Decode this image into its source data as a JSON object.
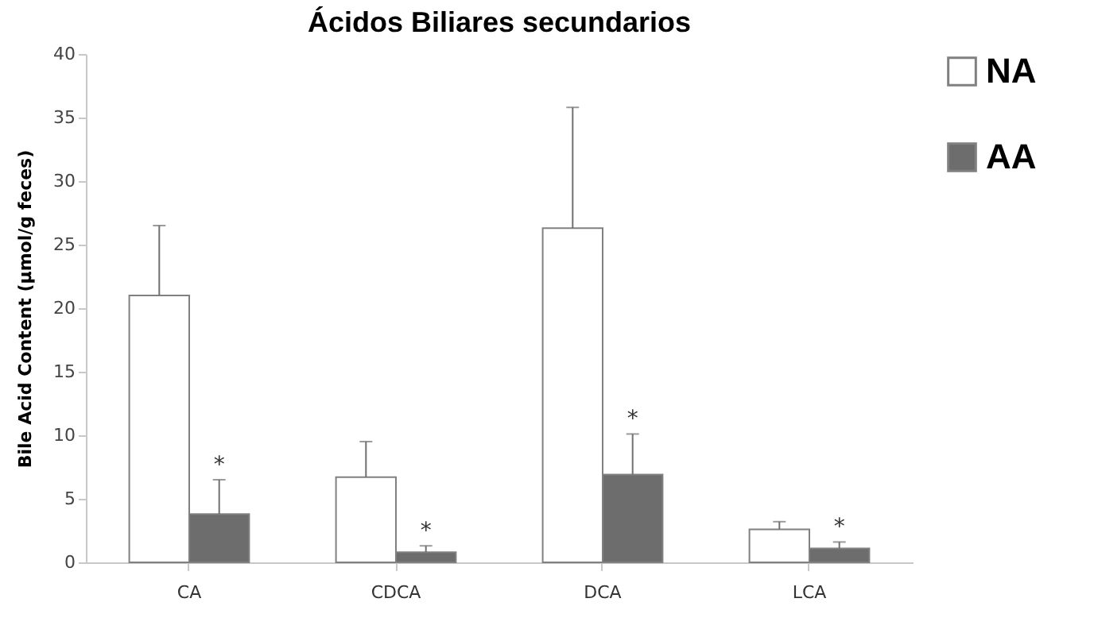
{
  "chart_data": {
    "type": "bar",
    "title": "Ácidos Biliares secundarios",
    "ylabel": "Bile Acid Content (µmol/g feces)",
    "categories": [
      "CA",
      "CDCA",
      "DCA",
      "LCA"
    ],
    "series": [
      {
        "name": "NA",
        "color": "#ffffff",
        "values": [
          21,
          6.7,
          26.3,
          2.6
        ],
        "errors": [
          [
            21,
            26.5
          ],
          [
            6.7,
            9.5
          ],
          [
            26.3,
            35.8
          ],
          [
            2.6,
            3.2
          ]
        ]
      },
      {
        "name": "AA",
        "color": "#6d6d6d",
        "values": [
          3.8,
          0.8,
          6.9,
          1.1
        ],
        "errors": [
          [
            3.8,
            6.5
          ],
          [
            0.8,
            1.3
          ],
          [
            6.9,
            10.1
          ],
          [
            1.1,
            1.6
          ]
        ]
      }
    ],
    "annotations": [
      {
        "text": "*",
        "x": "CA",
        "y": 6.5
      },
      {
        "text": "*",
        "x": "CDCA",
        "y": 1.3
      },
      {
        "text": "*",
        "x": "DCA",
        "y": 10.1
      },
      {
        "text": "*",
        "x": "LCA",
        "y": 1.6
      }
    ],
    "ylim": [
      0,
      40
    ],
    "yticks": [
      0,
      5,
      10,
      15,
      20,
      25,
      30,
      35,
      40
    ],
    "grid": false,
    "legend": "top right"
  }
}
